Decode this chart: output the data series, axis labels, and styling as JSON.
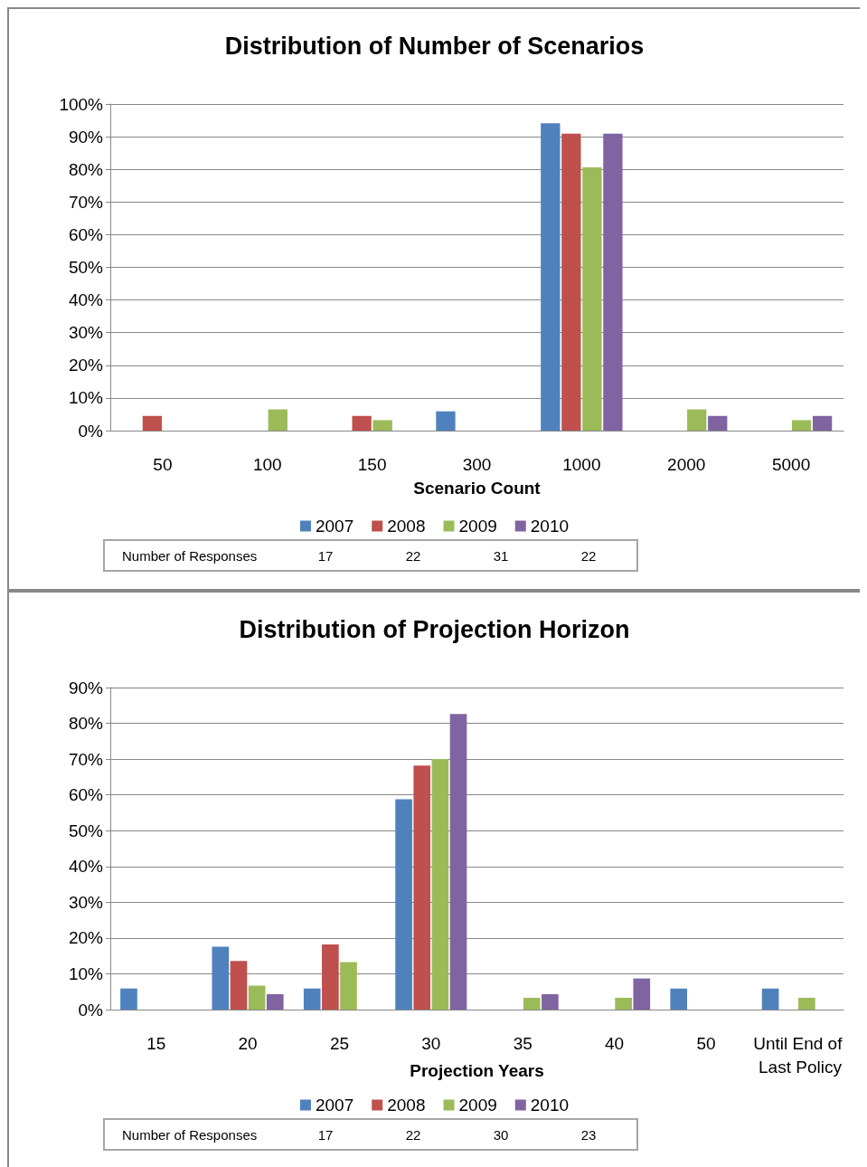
{
  "chart_data": [
    {
      "type": "bar",
      "title": "Distribution of Number of Scenarios",
      "xlabel": "Scenario Count",
      "categories": [
        "50",
        "100",
        "150",
        "300",
        "1000",
        "2000",
        "5000"
      ],
      "series": [
        {
          "name": "2007",
          "color": "#4f81bd",
          "values": [
            null,
            null,
            null,
            5.9,
            94.1,
            null,
            null
          ]
        },
        {
          "name": "2008",
          "color": "#c0504d",
          "values": [
            4.5,
            null,
            4.5,
            null,
            90.9,
            null,
            null
          ]
        },
        {
          "name": "2009",
          "color": "#9bbb59",
          "values": [
            null,
            6.5,
            3.2,
            null,
            80.6,
            6.5,
            3.2
          ]
        },
        {
          "name": "2010",
          "color": "#8064a2",
          "values": [
            null,
            null,
            null,
            null,
            90.9,
            4.5,
            4.5
          ]
        }
      ],
      "ylim": [
        0,
        100
      ],
      "yticks": [
        {
          "value": 0,
          "label": "0%"
        },
        {
          "value": 10,
          "label": "10%"
        },
        {
          "value": 20,
          "label": "20%"
        },
        {
          "value": 30,
          "label": "30%"
        },
        {
          "value": 40,
          "label": "40%"
        },
        {
          "value": 50,
          "label": "50%"
        },
        {
          "value": 60,
          "label": "60%"
        },
        {
          "value": 70,
          "label": "70%"
        },
        {
          "value": 80,
          "label": "80%"
        },
        {
          "value": 90,
          "label": "90%"
        },
        {
          "value": 100,
          "label": "100%"
        }
      ],
      "grid": "y",
      "legend": "bottom",
      "annotations": [
        "Number of Responses",
        "17",
        "22",
        "31",
        "22"
      ]
    },
    {
      "type": "bar",
      "title": "Distribution of Projection Horizon",
      "xlabel": "Projection Years",
      "categories": [
        "15",
        "20",
        "25",
        "30",
        "35",
        "40",
        "50",
        "Until End of Last Policy"
      ],
      "series": [
        {
          "name": "2007",
          "color": "#4f81bd",
          "values": [
            5.9,
            17.6,
            5.9,
            58.8,
            null,
            null,
            5.9,
            5.9
          ]
        },
        {
          "name": "2008",
          "color": "#c0504d",
          "values": [
            null,
            13.6,
            18.2,
            68.2,
            null,
            null,
            null,
            null
          ]
        },
        {
          "name": "2009",
          "color": "#9bbb59",
          "values": [
            null,
            6.7,
            13.3,
            70,
            3.3,
            3.3,
            null,
            3.3
          ]
        },
        {
          "name": "2010",
          "color": "#8064a2",
          "values": [
            null,
            4.3,
            null,
            82.6,
            4.3,
            8.7,
            null,
            null
          ]
        }
      ],
      "ylim": [
        0,
        90
      ],
      "yticks": [
        {
          "value": 0,
          "label": "0%"
        },
        {
          "value": 10,
          "label": "10%"
        },
        {
          "value": 20,
          "label": "20%"
        },
        {
          "value": 30,
          "label": "30%"
        },
        {
          "value": 40,
          "label": "40%"
        },
        {
          "value": 50,
          "label": "50%"
        },
        {
          "value": 60,
          "label": "60%"
        },
        {
          "value": 70,
          "label": "70%"
        },
        {
          "value": 80,
          "label": "80%"
        },
        {
          "value": 90,
          "label": "90%"
        }
      ],
      "grid": "y",
      "legend": "bottom",
      "annotations": [
        "Number of Responses",
        "17",
        "22",
        "30",
        "23"
      ]
    }
  ]
}
